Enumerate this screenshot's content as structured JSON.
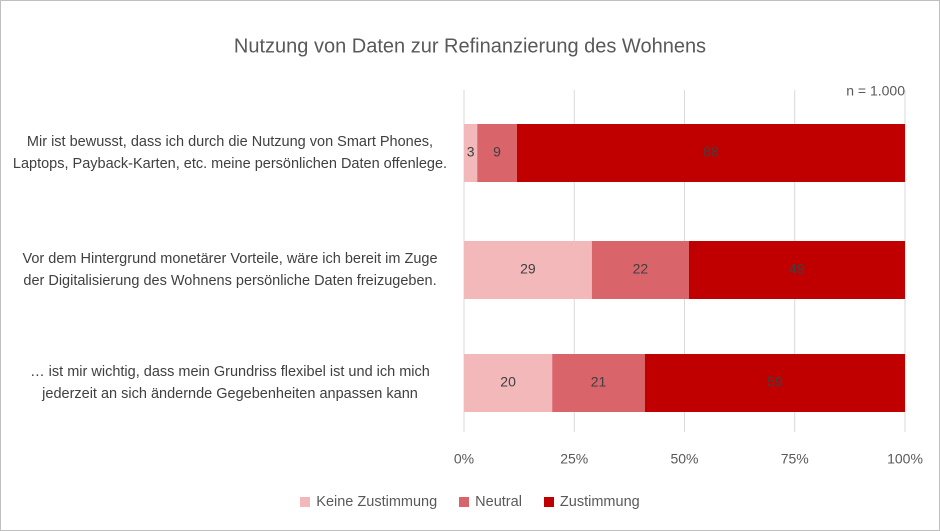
{
  "chart_data": {
    "type": "stacked_bar_horizontal",
    "title": "Nutzung von Daten zur Refinanzierung des Wohnens",
    "annotation": "n = 1.000",
    "categories": [
      "Mir ist bewusst, dass ich durch die Nutzung von Smart Phones, Laptops, Payback-Karten, etc. meine persönlichen Daten offenlege.",
      "Vor dem Hintergrund monetärer Vorteile, wäre ich bereit im Zuge der Digitalisierung des Wohnens persönliche Daten freizugeben.",
      "… ist mir wichtig, dass mein Grundriss flexibel ist und ich mich jederzeit an sich ändernde Gegebenheiten anpassen kann"
    ],
    "series": [
      {
        "name": "Keine Zustimmung",
        "color": "#f2b8ba",
        "values": [
          3,
          29,
          20
        ]
      },
      {
        "name": "Neutral",
        "color": "#d9646a",
        "values": [
          9,
          22,
          21
        ]
      },
      {
        "name": "Zustimmung",
        "color": "#c00000",
        "values": [
          88,
          49,
          59
        ]
      }
    ],
    "xlim": [
      0,
      100
    ],
    "xticks": [
      {
        "value": 0,
        "label": "0%"
      },
      {
        "value": 25,
        "label": "25%"
      },
      {
        "value": 50,
        "label": "50%"
      },
      {
        "value": 75,
        "label": "75%"
      },
      {
        "value": 100,
        "label": "100%"
      }
    ],
    "grid": true,
    "legend": "bottom"
  }
}
